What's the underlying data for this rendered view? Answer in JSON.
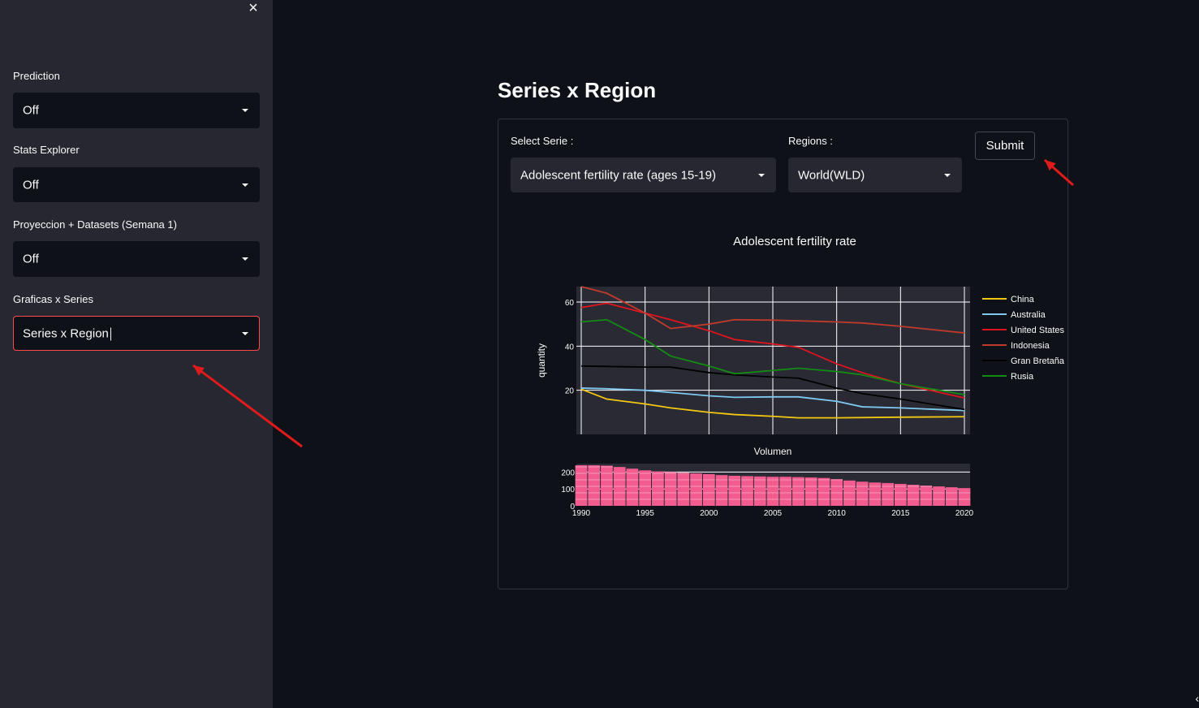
{
  "sidebar": {
    "close_icon": "×",
    "controls": [
      {
        "label": "Prediction",
        "value": "Off"
      },
      {
        "label": "Stats Explorer",
        "value": "Off"
      },
      {
        "label": "Proyeccion + Datasets (Semana 1)",
        "value": "Off"
      },
      {
        "label": "Graficas x Series",
        "value": "Series x Region"
      }
    ]
  },
  "main": {
    "title": "Series x Region",
    "form": {
      "serie_label": "Select Serie :",
      "serie_value": "Adolescent fertility rate (ages 15-19)",
      "region_label": "Regions :",
      "region_value": "World(WLD)",
      "submit_label": "Submit"
    }
  },
  "colors": {
    "accent": "#ff4b4b",
    "sidebar_bg": "#262730",
    "app_bg": "#0e1117",
    "plot_bg": "#2a2a35",
    "annotation_arrow": "#e01b1b",
    "bar_color": "#f25c8f"
  },
  "chart_data": {
    "type": "line",
    "title": "Adolescent fertility rate",
    "ylabel": "quantity",
    "xlim": [
      1990,
      2020
    ],
    "ylim": [
      0,
      67
    ],
    "yticks": [
      20,
      40,
      60
    ],
    "xticks": [
      1990,
      1995,
      2000,
      2005,
      2010,
      2015,
      2020
    ],
    "series": [
      {
        "name": "China",
        "color": "#f2c811",
        "x": [
          1990,
          1992,
          1995,
          1997,
          2000,
          2002,
          2005,
          2007,
          2010,
          2015,
          2020
        ],
        "y": [
          20.5,
          16,
          13.8,
          12,
          10,
          9,
          8.2,
          7.5,
          7.5,
          7.8,
          8
        ]
      },
      {
        "name": "Australia",
        "color": "#7ec8f0",
        "x": [
          1990,
          1992,
          1995,
          1997,
          2000,
          2002,
          2005,
          2007,
          2010,
          2012,
          2015,
          2020
        ],
        "y": [
          21,
          20.7,
          20,
          19,
          17.5,
          16.8,
          17,
          17,
          15,
          12.5,
          12,
          10.8
        ]
      },
      {
        "name": "United States",
        "color": "#e0141e",
        "x": [
          1990,
          1992,
          1995,
          1997,
          2000,
          2002,
          2005,
          2007,
          2010,
          2012,
          2015,
          2020
        ],
        "y": [
          57.5,
          59.5,
          55,
          52,
          47,
          43,
          41,
          39.5,
          32,
          28,
          23,
          16.5
        ]
      },
      {
        "name": "Indonesia",
        "color": "#c03a2b",
        "x": [
          1990,
          1992,
          1995,
          1997,
          2000,
          2002,
          2005,
          2007,
          2010,
          2012,
          2015,
          2020
        ],
        "y": [
          67,
          64,
          55,
          48,
          50,
          52,
          51.8,
          51.5,
          51,
          50.5,
          49,
          46
        ]
      },
      {
        "name": "Gran Bretaña",
        "color": "#000000",
        "x": [
          1990,
          1992,
          1995,
          1997,
          2000,
          2002,
          2005,
          2007,
          2010,
          2012,
          2015,
          2020
        ],
        "y": [
          31,
          30.8,
          30.5,
          30.5,
          28,
          27,
          26,
          25.5,
          21,
          18.5,
          16,
          11.3
        ]
      },
      {
        "name": "Rusia",
        "color": "#148c14",
        "x": [
          1990,
          1992,
          1995,
          1997,
          2000,
          2002,
          2005,
          2007,
          2010,
          2012,
          2015,
          2020
        ],
        "y": [
          51,
          52,
          43,
          35.5,
          31,
          27.5,
          29,
          30,
          28.5,
          27,
          23,
          18
        ]
      }
    ],
    "volume": {
      "xlabel": "Volumen",
      "ylim": [
        0,
        250
      ],
      "yticks": [
        0,
        100,
        200
      ],
      "x": [
        1990,
        1991,
        1992,
        1993,
        1994,
        1995,
        1996,
        1997,
        1998,
        1999,
        2000,
        2001,
        2002,
        2003,
        2004,
        2005,
        2006,
        2007,
        2008,
        2009,
        2010,
        2011,
        2012,
        2013,
        2014,
        2015,
        2016,
        2017,
        2018,
        2019,
        2020
      ],
      "values": [
        240,
        240,
        238,
        230,
        220,
        210,
        204,
        200,
        196,
        192,
        188,
        182,
        178,
        176,
        174,
        172,
        172,
        170,
        168,
        165,
        158,
        150,
        143,
        138,
        135,
        130,
        125,
        120,
        115,
        110,
        105
      ]
    }
  }
}
